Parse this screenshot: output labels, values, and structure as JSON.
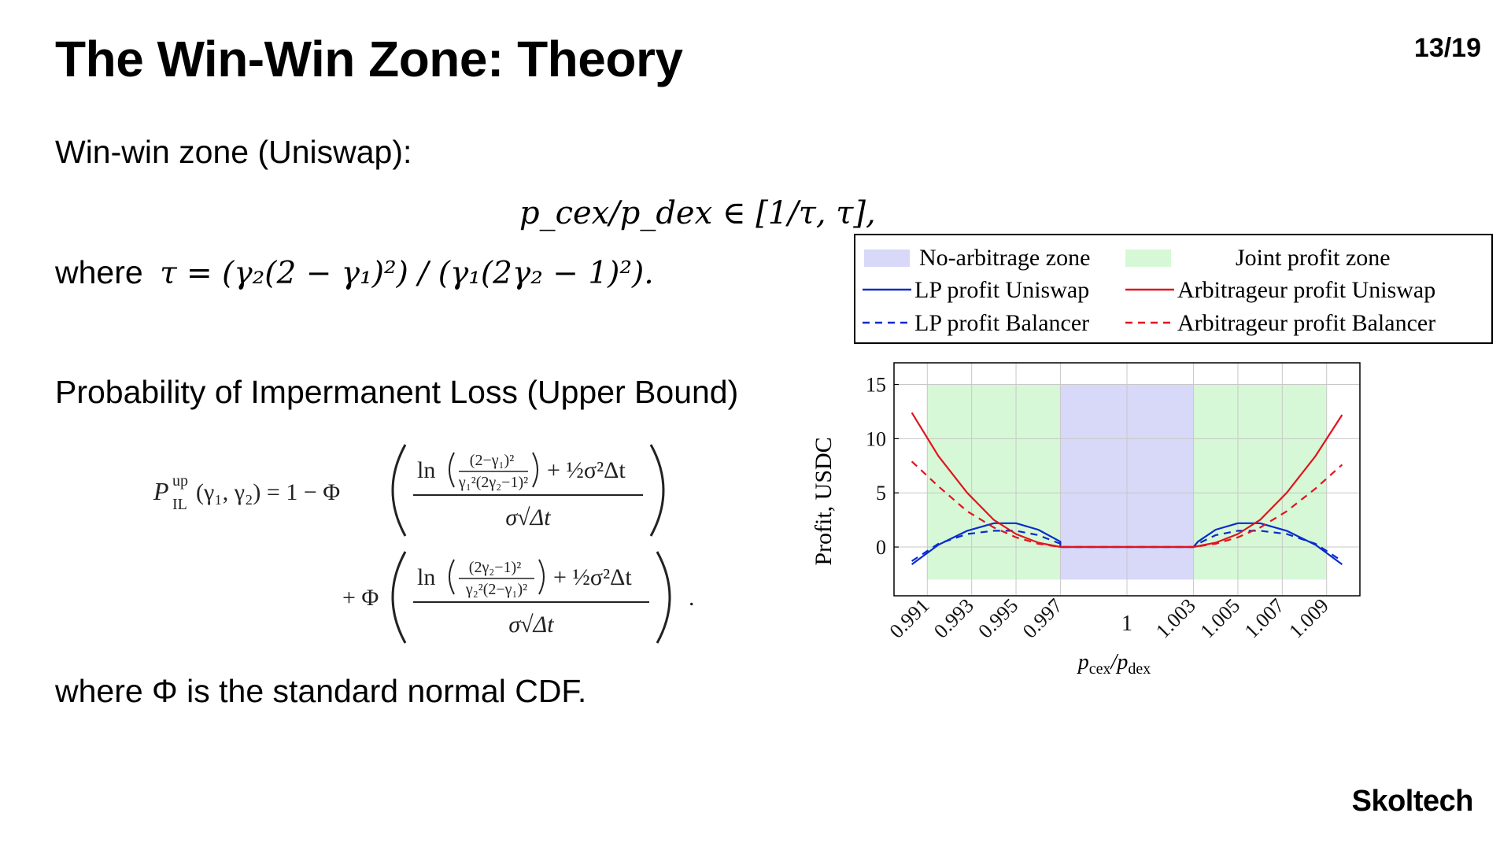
{
  "slide": {
    "title": "The Win-Win Zone: Theory",
    "page_number": "13/19",
    "logo_text": "Skoltech"
  },
  "content": {
    "zone_heading": "Win-win zone (Uniswap):",
    "zone_formula": "p_cex/p_dex ∈ [1/τ, τ],",
    "where_prefix": "where",
    "tau_definition": "τ = (γ₂(2 − γ₁)²) / (γ₁(2γ₂ − 1)²).",
    "prob_heading": "Probability of Impermanent Loss (Upper Bound)",
    "phi_note": "where Φ is the standard normal CDF."
  },
  "formula": {
    "lhs_p": "P",
    "lhs_sup": "up",
    "lhs_sub": "IL",
    "lhs_args": "(γ₁, γ₂) = 1 − Φ",
    "ln": "ln",
    "frac1_num": "(2−γ₁)²",
    "frac1_den": "γ₁²(2γ₂−1)²",
    "plus_term": "+ ½σ²Δt",
    "den": "σ√Δt",
    "second_prefix": "+ Φ",
    "frac2_num": "(2γ₂−1)²",
    "frac2_den": "γ₂²(2−γ₁)²",
    "end_dot": "."
  },
  "chart_data": {
    "type": "line",
    "xlabel": "p_cex/p_dex",
    "ylabel": "Profit, USDC",
    "xlim": [
      0.9895,
      1.0105
    ],
    "ylim": [
      -4.5,
      17
    ],
    "xticks": [
      "0.991",
      "0.993",
      "0.995",
      "0.997",
      "1",
      "1.003",
      "1.005",
      "1.007",
      "1.009"
    ],
    "xtick_values": [
      0.991,
      0.993,
      0.995,
      0.997,
      1.0,
      1.003,
      1.005,
      1.007,
      1.009
    ],
    "yticks": [
      0,
      5,
      10,
      15
    ],
    "grid": true,
    "legend_position": "top",
    "zones": [
      {
        "name": "No-arbitrage zone",
        "x_range": [
          0.997,
          1.003
        ],
        "y_range": [
          -3,
          15
        ],
        "color": "#d8d8f8"
      },
      {
        "name": "Joint profit zone",
        "x_range": [
          0.991,
          0.997
        ],
        "y_range": [
          -3,
          15
        ],
        "color": "#d6f8d6"
      },
      {
        "name": "Joint profit zone",
        "x_range": [
          1.003,
          1.009
        ],
        "y_range": [
          -3,
          15
        ],
        "color": "#d6f8d6"
      }
    ],
    "series": [
      {
        "name": "LP profit Uniswap",
        "color": "#0a2bcc",
        "dash": "solid",
        "points": [
          [
            0.9903,
            -1.6
          ],
          [
            0.9915,
            0.2
          ],
          [
            0.9928,
            1.5
          ],
          [
            0.994,
            2.2
          ],
          [
            0.995,
            2.2
          ],
          [
            0.996,
            1.6
          ],
          [
            0.997,
            0.5
          ],
          [
            0.997,
            0
          ],
          [
            1.003,
            0
          ],
          [
            1.0032,
            0.5
          ],
          [
            1.004,
            1.6
          ],
          [
            1.005,
            2.2
          ],
          [
            1.006,
            2.2
          ],
          [
            1.0072,
            1.5
          ],
          [
            1.0085,
            0.2
          ],
          [
            1.0097,
            -1.6
          ]
        ]
      },
      {
        "name": "LP profit Balancer",
        "color": "#0a2bcc",
        "dash": "dashed",
        "points": [
          [
            0.9903,
            -1.3
          ],
          [
            0.9915,
            0.3
          ],
          [
            0.9928,
            1.2
          ],
          [
            0.994,
            1.5
          ],
          [
            0.995,
            1.5
          ],
          [
            0.996,
            1.1
          ],
          [
            0.997,
            0.3
          ],
          [
            0.997,
            0
          ],
          [
            1.003,
            0
          ],
          [
            1.0032,
            0.3
          ],
          [
            1.004,
            1.1
          ],
          [
            1.005,
            1.5
          ],
          [
            1.006,
            1.5
          ],
          [
            1.0072,
            1.2
          ],
          [
            1.0085,
            0.3
          ],
          [
            1.0097,
            -1.3
          ]
        ]
      },
      {
        "name": "Arbitrageur profit Uniswap",
        "color": "#e0141e",
        "dash": "solid",
        "points": [
          [
            0.9903,
            12.4
          ],
          [
            0.9915,
            8.4
          ],
          [
            0.9928,
            5.0
          ],
          [
            0.994,
            2.5
          ],
          [
            0.995,
            1.2
          ],
          [
            0.996,
            0.4
          ],
          [
            0.997,
            0
          ],
          [
            1.003,
            0
          ],
          [
            1.004,
            0.4
          ],
          [
            1.005,
            1.2
          ],
          [
            1.006,
            2.5
          ],
          [
            1.0072,
            5.0
          ],
          [
            1.0085,
            8.4
          ],
          [
            1.0097,
            12.2
          ]
        ]
      },
      {
        "name": "Arbitrageur profit Balancer",
        "color": "#e0141e",
        "dash": "dashed",
        "points": [
          [
            0.9903,
            7.9
          ],
          [
            0.9915,
            5.6
          ],
          [
            0.9928,
            3.3
          ],
          [
            0.994,
            1.8
          ],
          [
            0.995,
            0.9
          ],
          [
            0.996,
            0.3
          ],
          [
            0.997,
            0
          ],
          [
            1.003,
            0
          ],
          [
            1.004,
            0.3
          ],
          [
            1.005,
            0.9
          ],
          [
            1.006,
            1.8
          ],
          [
            1.0072,
            3.3
          ],
          [
            1.0085,
            5.4
          ],
          [
            1.0097,
            7.6
          ]
        ]
      }
    ]
  }
}
